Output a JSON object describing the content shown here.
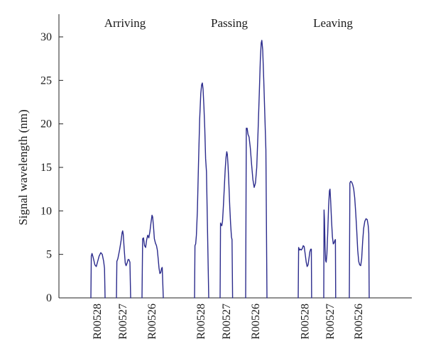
{
  "chart_data": {
    "type": "line",
    "ylabel": "Signal wavelength (nm)",
    "xlabel": "",
    "ylim": [
      0,
      32
    ],
    "yticks": [
      0,
      5,
      10,
      15,
      20,
      25,
      30
    ],
    "grid": false,
    "legend": "none",
    "line_color": "#2b2b8c",
    "groups": [
      {
        "label": "Arriving",
        "series": [
          {
            "name": "R00528",
            "points": [
              [
                0.0,
                0.0
              ],
              [
                0.03,
                4.8
              ],
              [
                0.08,
                5.1
              ],
              [
                0.17,
                4.6
              ],
              [
                0.28,
                3.8
              ],
              [
                0.38,
                3.6
              ],
              [
                0.48,
                4.2
              ],
              [
                0.58,
                4.8
              ],
              [
                0.7,
                5.2
              ],
              [
                0.8,
                5.0
              ],
              [
                0.9,
                4.2
              ],
              [
                0.96,
                3.4
              ],
              [
                1.0,
                0.0
              ]
            ]
          },
          {
            "name": "R00527",
            "points": [
              [
                0.0,
                0.0
              ],
              [
                0.03,
                4.2
              ],
              [
                0.1,
                4.5
              ],
              [
                0.22,
                5.5
              ],
              [
                0.32,
                6.5
              ],
              [
                0.4,
                7.5
              ],
              [
                0.44,
                7.7
              ],
              [
                0.48,
                7.3
              ],
              [
                0.55,
                5.5
              ],
              [
                0.62,
                4.0
              ],
              [
                0.68,
                3.7
              ],
              [
                0.75,
                4.0
              ],
              [
                0.82,
                4.4
              ],
              [
                0.88,
                4.4
              ],
              [
                0.95,
                4.1
              ],
              [
                1.0,
                0.0
              ]
            ]
          },
          {
            "name": "R00526",
            "points": [
              [
                0.0,
                0.0
              ],
              [
                0.03,
                6.8
              ],
              [
                0.07,
                6.9
              ],
              [
                0.12,
                6.0
              ],
              [
                0.17,
                5.8
              ],
              [
                0.22,
                6.7
              ],
              [
                0.27,
                7.2
              ],
              [
                0.32,
                6.9
              ],
              [
                0.37,
                7.6
              ],
              [
                0.42,
                8.6
              ],
              [
                0.47,
                9.5
              ],
              [
                0.5,
                9.3
              ],
              [
                0.54,
                8.2
              ],
              [
                0.58,
                6.8
              ],
              [
                0.63,
                6.3
              ],
              [
                0.68,
                6.0
              ],
              [
                0.72,
                5.5
              ],
              [
                0.76,
                4.5
              ],
              [
                0.8,
                3.4
              ],
              [
                0.84,
                2.8
              ],
              [
                0.88,
                2.9
              ],
              [
                0.92,
                3.4
              ],
              [
                0.95,
                3.5
              ],
              [
                1.0,
                0.0
              ]
            ]
          }
        ]
      },
      {
        "label": "Passing",
        "series": [
          {
            "name": "R00528",
            "points": [
              [
                0.0,
                0.0
              ],
              [
                0.03,
                6.0
              ],
              [
                0.08,
                6.2
              ],
              [
                0.13,
                7.2
              ],
              [
                0.2,
                10.0
              ],
              [
                0.28,
                15.5
              ],
              [
                0.36,
                20.5
              ],
              [
                0.44,
                23.5
              ],
              [
                0.5,
                24.5
              ],
              [
                0.55,
                24.7
              ],
              [
                0.6,
                24.0
              ],
              [
                0.66,
                22.0
              ],
              [
                0.72,
                19.5
              ],
              [
                0.78,
                16.0
              ],
              [
                0.84,
                14.5
              ],
              [
                1.0,
                0.0
              ]
            ]
          },
          {
            "name": "R00527",
            "points": [
              [
                0.0,
                0.0
              ],
              [
                0.03,
                8.6
              ],
              [
                0.07,
                8.4
              ],
              [
                0.12,
                8.3
              ],
              [
                0.17,
                8.8
              ],
              [
                0.23,
                10.5
              ],
              [
                0.3,
                12.8
              ],
              [
                0.36,
                14.8
              ],
              [
                0.42,
                16.2
              ],
              [
                0.47,
                16.8
              ],
              [
                0.51,
                16.5
              ],
              [
                0.56,
                15.2
              ],
              [
                0.62,
                13.0
              ],
              [
                0.68,
                10.5
              ],
              [
                0.74,
                8.5
              ],
              [
                0.8,
                7.0
              ],
              [
                0.84,
                6.7
              ],
              [
                0.88,
                0.0
              ]
            ]
          },
          {
            "name": "R00526",
            "points": [
              [
                0.0,
                0.0
              ],
              [
                0.03,
                19.5
              ],
              [
                0.07,
                19.5
              ],
              [
                0.11,
                18.8
              ],
              [
                0.16,
                18.5
              ],
              [
                0.22,
                17.2
              ],
              [
                0.28,
                15.3
              ],
              [
                0.34,
                13.6
              ],
              [
                0.4,
                12.7
              ],
              [
                0.46,
                13.2
              ],
              [
                0.52,
                15.0
              ],
              [
                0.58,
                19.0
              ],
              [
                0.64,
                23.5
              ],
              [
                0.69,
                27.5
              ],
              [
                0.73,
                29.3
              ],
              [
                0.76,
                29.6
              ],
              [
                0.8,
                28.5
              ],
              [
                0.85,
                25.0
              ],
              [
                0.9,
                21.0
              ],
              [
                0.95,
                17.0
              ],
              [
                1.0,
                0.0
              ]
            ]
          }
        ]
      },
      {
        "label": "Leaving",
        "series": [
          {
            "name": "R00528",
            "points": [
              [
                0.0,
                0.0
              ],
              [
                0.03,
                5.8
              ],
              [
                0.09,
                5.5
              ],
              [
                0.15,
                5.6
              ],
              [
                0.21,
                5.5
              ],
              [
                0.28,
                5.7
              ],
              [
                0.34,
                6.0
              ],
              [
                0.4,
                5.9
              ],
              [
                0.47,
                5.0
              ],
              [
                0.54,
                4.1
              ],
              [
                0.6,
                3.6
              ],
              [
                0.66,
                3.8
              ],
              [
                0.72,
                4.5
              ],
              [
                0.78,
                5.3
              ],
              [
                0.84,
                5.6
              ],
              [
                0.88,
                5.6
              ],
              [
                0.9,
                0.0
              ]
            ]
          },
          {
            "name": "R00527",
            "points": [
              [
                0.0,
                0.0
              ],
              [
                0.02,
                10.1
              ],
              [
                0.05,
                9.0
              ],
              [
                0.09,
                6.0
              ],
              [
                0.13,
                4.3
              ],
              [
                0.17,
                4.1
              ],
              [
                0.22,
                5.0
              ],
              [
                0.28,
                7.5
              ],
              [
                0.34,
                10.5
              ],
              [
                0.4,
                12.3
              ],
              [
                0.44,
                12.5
              ],
              [
                0.49,
                11.0
              ],
              [
                0.55,
                8.8
              ],
              [
                0.61,
                7.0
              ],
              [
                0.67,
                6.2
              ],
              [
                0.72,
                6.3
              ],
              [
                0.78,
                6.6
              ],
              [
                0.82,
                6.7
              ],
              [
                0.84,
                0.0
              ]
            ]
          },
          {
            "name": "R00526",
            "points": [
              [
                0.0,
                0.0
              ],
              [
                0.03,
                13.2
              ],
              [
                0.07,
                13.4
              ],
              [
                0.12,
                13.3
              ],
              [
                0.17,
                13.0
              ],
              [
                0.22,
                12.5
              ],
              [
                0.27,
                11.5
              ],
              [
                0.32,
                9.8
              ],
              [
                0.37,
                7.8
              ],
              [
                0.42,
                5.5
              ],
              [
                0.47,
                4.2
              ],
              [
                0.52,
                3.8
              ],
              [
                0.57,
                3.7
              ],
              [
                0.62,
                4.5
              ],
              [
                0.67,
                6.5
              ],
              [
                0.72,
                8.0
              ],
              [
                0.78,
                8.8
              ],
              [
                0.84,
                9.1
              ],
              [
                0.9,
                9.0
              ],
              [
                0.95,
                8.3
              ],
              [
                0.98,
                7.4
              ],
              [
                1.0,
                0.0
              ]
            ]
          }
        ]
      }
    ]
  }
}
